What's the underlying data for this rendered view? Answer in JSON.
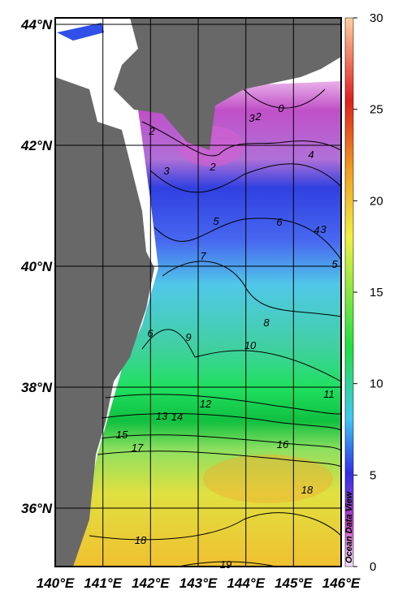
{
  "map": {
    "x_axis_labels": [
      "140°E",
      "141°E",
      "142°E",
      "143°E",
      "144°E",
      "145°E",
      "146°E"
    ],
    "y_axis_labels": [
      "44°N",
      "42°N",
      "40°N",
      "38°N",
      "36°N"
    ],
    "colorbar": {
      "ticks": [
        0,
        5,
        10,
        15,
        20,
        25,
        30
      ]
    },
    "contour_labels": [
      0,
      2,
      3,
      2,
      2,
      3,
      4,
      3,
      4,
      5,
      6,
      5,
      7,
      6,
      9,
      8,
      10,
      11,
      12,
      13,
      14,
      15,
      16,
      17,
      18,
      18,
      19
    ],
    "watermark": "Ocean Data View"
  }
}
